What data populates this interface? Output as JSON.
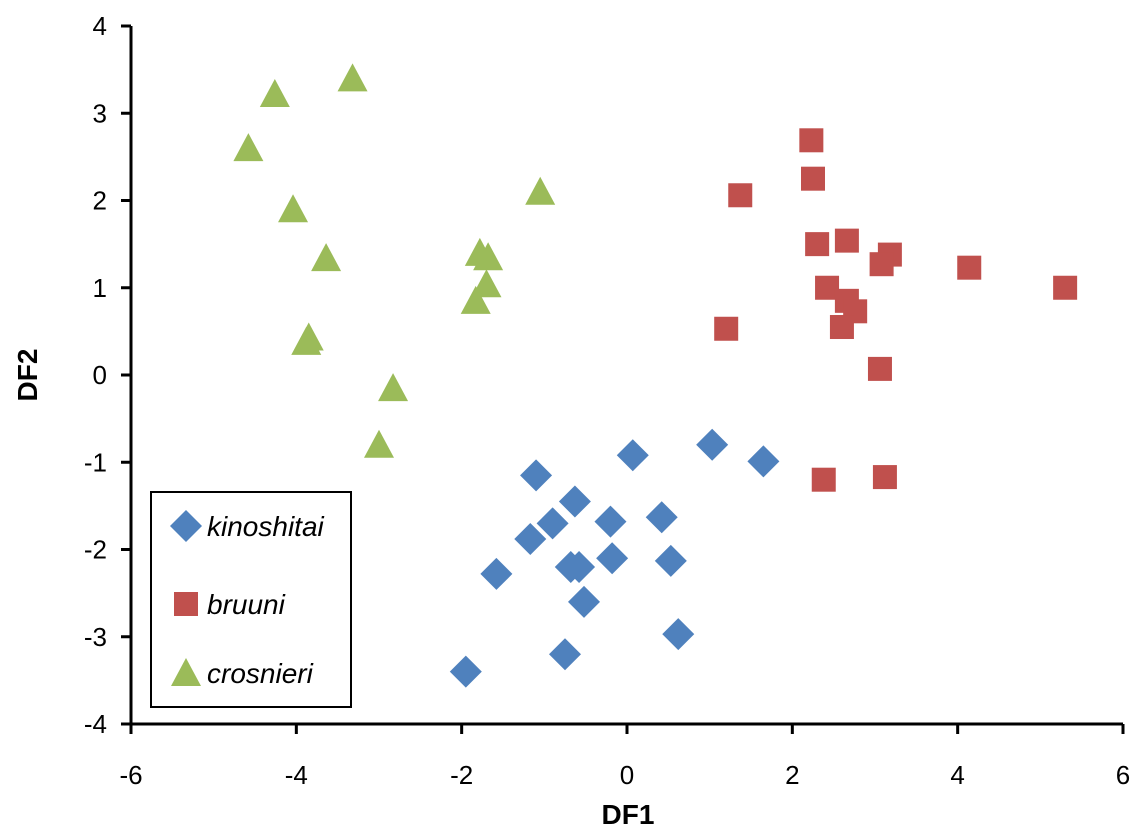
{
  "chart_data": {
    "type": "scatter",
    "xlabel": "DF1",
    "ylabel": "DF2",
    "xlim": [
      -6,
      6
    ],
    "ylim": [
      -4,
      4
    ],
    "xticks": [
      -6,
      -4,
      -2,
      0,
      2,
      4,
      6
    ],
    "yticks": [
      -4,
      -3,
      -2,
      -1,
      0,
      1,
      2,
      3,
      4
    ],
    "grid": false,
    "legend_position": "bottom-left",
    "series": [
      {
        "name": "kinoshitai",
        "marker": "diamond",
        "color": "#4F81BD",
        "points": [
          [
            -1.95,
            -3.4
          ],
          [
            -0.75,
            -3.2
          ],
          [
            0.62,
            -2.97
          ],
          [
            -0.52,
            -2.6
          ],
          [
            -1.58,
            -2.28
          ],
          [
            -0.68,
            -2.2
          ],
          [
            -0.58,
            -2.2
          ],
          [
            -0.18,
            -2.1
          ],
          [
            0.53,
            -2.13
          ],
          [
            -1.17,
            -1.88
          ],
          [
            -0.9,
            -1.7
          ],
          [
            -0.2,
            -1.68
          ],
          [
            0.42,
            -1.63
          ],
          [
            -0.63,
            -1.45
          ],
          [
            -1.1,
            -1.15
          ],
          [
            0.07,
            -0.92
          ],
          [
            1.03,
            -0.8
          ],
          [
            1.65,
            -0.99
          ]
        ]
      },
      {
        "name": "bruuni",
        "marker": "square",
        "color": "#C0504D",
        "points": [
          [
            2.23,
            2.69
          ],
          [
            2.25,
            2.25
          ],
          [
            1.37,
            2.06
          ],
          [
            2.3,
            1.5
          ],
          [
            2.66,
            1.54
          ],
          [
            3.18,
            1.38
          ],
          [
            3.08,
            1.27
          ],
          [
            4.14,
            1.23
          ],
          [
            5.3,
            1.0
          ],
          [
            2.42,
            1.0
          ],
          [
            2.66,
            0.85
          ],
          [
            2.76,
            0.73
          ],
          [
            2.6,
            0.55
          ],
          [
            1.2,
            0.53
          ],
          [
            3.06,
            0.07
          ],
          [
            2.38,
            -1.2
          ],
          [
            3.12,
            -1.17
          ]
        ]
      },
      {
        "name": "crosnieri",
        "marker": "triangle",
        "color": "#9BBB59",
        "points": [
          [
            -3.32,
            3.4
          ],
          [
            -4.26,
            3.22
          ],
          [
            -4.58,
            2.6
          ],
          [
            -4.04,
            1.9
          ],
          [
            -1.05,
            2.1
          ],
          [
            -3.64,
            1.34
          ],
          [
            -1.78,
            1.4
          ],
          [
            -1.68,
            1.35
          ],
          [
            -1.7,
            1.04
          ],
          [
            -1.83,
            0.85
          ],
          [
            -3.88,
            0.38
          ],
          [
            -3.85,
            0.43
          ],
          [
            -2.83,
            -0.15
          ],
          [
            -3.0,
            -0.8
          ]
        ]
      }
    ]
  }
}
